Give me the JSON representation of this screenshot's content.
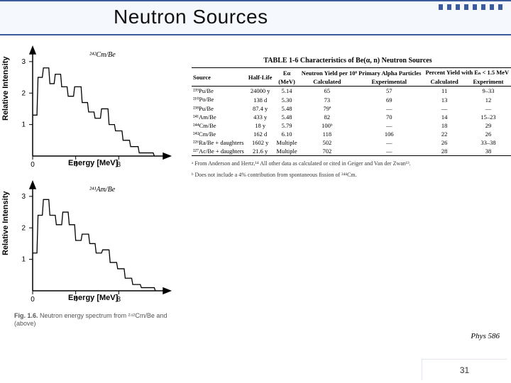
{
  "title": "Neutron Sources",
  "page_number": "31",
  "phys_label": "Phys 586",
  "fig_caption_lead": "Fig. 1.6.",
  "fig_caption_text": " Neutron energy spectrum from ²⁴²Cm/Be and (above)",
  "chart_top": {
    "legend": "²⁴²Cm/Be",
    "ylabel": "Relative Intensity",
    "xlabel": "Energy [MeV]",
    "xticks": [
      "0",
      "4",
      "8"
    ],
    "yticks": [
      "1",
      "2",
      "3"
    ],
    "ylim": [
      0,
      3.2
    ],
    "xlim": [
      0,
      12
    ],
    "points": [
      [
        0,
        1.3
      ],
      [
        0.4,
        1.3
      ],
      [
        0.5,
        2.5
      ],
      [
        0.9,
        2.5
      ],
      [
        1.0,
        2.8
      ],
      [
        1.5,
        2.8
      ],
      [
        1.6,
        2.3
      ],
      [
        2.0,
        2.3
      ],
      [
        2.1,
        2.6
      ],
      [
        2.6,
        2.6
      ],
      [
        2.7,
        2.2
      ],
      [
        3.2,
        2.2
      ],
      [
        3.3,
        1.9
      ],
      [
        3.8,
        1.9
      ],
      [
        3.9,
        2.2
      ],
      [
        4.5,
        2.2
      ],
      [
        4.6,
        1.7
      ],
      [
        5.1,
        1.7
      ],
      [
        5.2,
        1.4
      ],
      [
        5.7,
        1.4
      ],
      [
        5.8,
        1.2
      ],
      [
        6.3,
        1.2
      ],
      [
        6.4,
        1.5
      ],
      [
        7.0,
        1.5
      ],
      [
        7.1,
        1.0
      ],
      [
        7.6,
        1.0
      ],
      [
        7.7,
        0.8
      ],
      [
        8.3,
        0.8
      ],
      [
        8.4,
        0.5
      ],
      [
        9.0,
        0.5
      ],
      [
        9.1,
        0.3
      ],
      [
        9.8,
        0.3
      ],
      [
        9.9,
        0.1
      ],
      [
        11.2,
        0.1
      ],
      [
        11.3,
        0
      ]
    ],
    "line_color": "#000000",
    "line_width": 1.2
  },
  "chart_bottom": {
    "legend": "²⁴¹Am/Be",
    "ylabel": "Relative Intensity",
    "xlabel": "Energy [MeV]",
    "xticks": [
      "0",
      "4",
      "8"
    ],
    "yticks": [
      "1",
      "2",
      "3"
    ],
    "ylim": [
      0,
      3.2
    ],
    "xlim": [
      0,
      12
    ],
    "points": [
      [
        0,
        1.2
      ],
      [
        0.4,
        1.2
      ],
      [
        0.5,
        2.4
      ],
      [
        0.9,
        2.4
      ],
      [
        1.0,
        2.9
      ],
      [
        1.5,
        2.9
      ],
      [
        1.6,
        2.4
      ],
      [
        2.1,
        2.4
      ],
      [
        2.2,
        2.1
      ],
      [
        2.7,
        2.1
      ],
      [
        2.8,
        2.5
      ],
      [
        3.3,
        2.5
      ],
      [
        3.4,
        2.1
      ],
      [
        3.9,
        2.1
      ],
      [
        4.0,
        1.6
      ],
      [
        4.5,
        1.6
      ],
      [
        4.6,
        1.8
      ],
      [
        5.2,
        1.8
      ],
      [
        5.3,
        1.5
      ],
      [
        5.8,
        1.5
      ],
      [
        5.9,
        1.2
      ],
      [
        6.4,
        1.2
      ],
      [
        6.5,
        1.3
      ],
      [
        7.1,
        1.3
      ],
      [
        7.2,
        0.9
      ],
      [
        7.8,
        0.9
      ],
      [
        7.9,
        0.7
      ],
      [
        8.5,
        0.7
      ],
      [
        8.6,
        0.4
      ],
      [
        9.2,
        0.4
      ],
      [
        9.3,
        0.2
      ],
      [
        10.0,
        0.2
      ],
      [
        10.1,
        0.1
      ],
      [
        11.3,
        0.1
      ],
      [
        11.4,
        0
      ]
    ],
    "line_color": "#000000",
    "line_width": 1.2
  },
  "table": {
    "title": "TABLE 1-6   Characteristics of Be(α, n) Neutron Sources",
    "header_top": {
      "e_alpha": "Eα",
      "ny": "Neutron Yield per 10⁶ Primary Alpha Particles",
      "py": "Percent Yield with Eₙ < 1.5 MeV"
    },
    "header_bot": [
      "Source",
      "Half-Life",
      "(MeV)",
      "Calculated",
      "Experimental",
      "Calculated",
      "Experiment"
    ],
    "rows": [
      {
        "src": "²³⁹Pu/Be",
        "hl": "24000 y",
        "e": "5.14",
        "c1": "65",
        "e1": "57",
        "c2": "11",
        "e2": "9–33"
      },
      {
        "src": "²¹⁰Po/Be",
        "hl": "138 d",
        "e": "5.30",
        "c1": "73",
        "e1": "69",
        "c2": "13",
        "e2": "12"
      },
      {
        "src": "²³⁸Pu/Be",
        "hl": "87.4 y",
        "e": "5.48",
        "c1": "79ª",
        "e1": "—",
        "c2": "—",
        "e2": "—"
      },
      {
        "src": "²⁴¹Am/Be",
        "hl": "433 y",
        "e": "5.48",
        "c1": "82",
        "e1": "70",
        "c2": "14",
        "e2": "15–23"
      },
      {
        "src": "²⁴⁴Cm/Be",
        "hl": "18 y",
        "e": "5.79",
        "c1": "100ᵇ",
        "e1": "—",
        "c2": "18",
        "e2": "29"
      },
      {
        "src": "²⁴²Cm/Be",
        "hl": "162 d",
        "e": "6.10",
        "c1": "118",
        "e1": "106",
        "c2": "22",
        "e2": "26"
      },
      {
        "src": "²²⁶Ra/Be + daughters",
        "hl": "1602 y",
        "e": "Multiple",
        "c1": "502",
        "e1": "—",
        "c2": "26",
        "e2": "33–38"
      },
      {
        "src": "²²⁷Ac/Be + daughters",
        "hl": "21.6 y",
        "e": "Multiple",
        "c1": "702",
        "e1": "—",
        "c2": "28",
        "e2": "38"
      }
    ],
    "footnote_a": "ᵃ From Anderson and Hertz.¹⁴ All other data as calculated or cited in Geiger and Van der Zwan¹³.",
    "footnote_b": "ᵇ Does not include a 4% contribution from spontaneous fission of ²⁴⁴Cm."
  }
}
